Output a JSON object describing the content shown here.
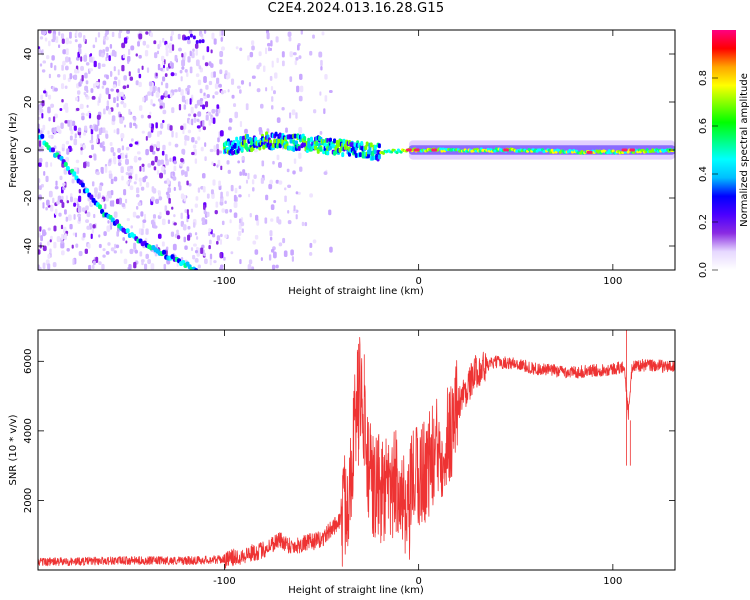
{
  "title": "C2E4.2024.013.16.28.G15",
  "chart_data": [
    {
      "type": "heatmap",
      "xlabel": "Height of straight line (km)",
      "ylabel": "Frequency (Hz)",
      "xlim": [
        -196,
        132
      ],
      "ylim": [
        -50,
        50
      ],
      "xticks": [
        -100,
        0,
        100
      ],
      "yticks": [
        -40,
        -20,
        0,
        20,
        40
      ],
      "colorbar": {
        "label": "Normalized spectral amplitude",
        "range": [
          0,
          1
        ],
        "ticks": [
          0.0,
          0.2,
          0.4,
          0.6,
          0.8
        ],
        "colors": [
          "#ffffff",
          "#e6d8ff",
          "#8a2be2",
          "#4b00ff",
          "#0000ff",
          "#00bfff",
          "#00ffff",
          "#00ff80",
          "#00ff00",
          "#80ff00",
          "#ffff00",
          "#ffa500",
          "#ff0000",
          "#ff0080"
        ]
      },
      "features": {
        "carrier_line": [
          [
            -100,
            1
          ],
          [
            -80,
            4
          ],
          [
            -60,
            3
          ],
          [
            -40,
            1
          ],
          [
            -20,
            -1
          ],
          [
            0,
            0
          ],
          [
            50,
            0
          ],
          [
            90,
            -1
          ],
          [
            132,
            0
          ]
        ],
        "diagonal_trace": [
          [
            -196,
            7
          ],
          [
            -180,
            -8
          ],
          [
            -160,
            -28
          ],
          [
            -140,
            -40
          ],
          [
            -120,
            -48
          ],
          [
            -114,
            -50
          ]
        ]
      }
    },
    {
      "type": "line",
      "xlabel": "Height of straight line (km)",
      "ylabel": "SNR (10 * v/v)",
      "xlim": [
        -196,
        132
      ],
      "ylim": [
        0,
        6900
      ],
      "xticks": [
        -100,
        0,
        100
      ],
      "yticks": [
        2000,
        4000,
        6000
      ],
      "color": "#ee3333",
      "envelope": [
        [
          -196,
          250
        ],
        [
          -180,
          250
        ],
        [
          -160,
          280
        ],
        [
          -140,
          280
        ],
        [
          -120,
          280
        ],
        [
          -100,
          320
        ],
        [
          -90,
          450
        ],
        [
          -80,
          600
        ],
        [
          -72,
          900
        ],
        [
          -65,
          700
        ],
        [
          -58,
          800
        ],
        [
          -50,
          900
        ],
        [
          -45,
          1200
        ],
        [
          -40,
          1500
        ],
        [
          -36,
          2500
        ],
        [
          -32,
          4800
        ],
        [
          -30,
          5500
        ],
        [
          -27,
          3500
        ],
        [
          -24,
          2500
        ],
        [
          -20,
          2500
        ],
        [
          -15,
          2300
        ],
        [
          -10,
          2800
        ],
        [
          -6,
          1200
        ],
        [
          -3,
          2800
        ],
        [
          0,
          2800
        ],
        [
          5,
          3200
        ],
        [
          10,
          3600
        ],
        [
          15,
          4000
        ],
        [
          20,
          4800
        ],
        [
          25,
          5300
        ],
        [
          30,
          5800
        ],
        [
          35,
          5900
        ],
        [
          40,
          6000
        ],
        [
          50,
          5950
        ],
        [
          60,
          5800
        ],
        [
          70,
          5750
        ],
        [
          80,
          5700
        ],
        [
          90,
          5750
        ],
        [
          100,
          5800
        ],
        [
          106,
          5850
        ],
        [
          108,
          4500
        ],
        [
          110,
          5900
        ],
        [
          120,
          5900
        ],
        [
          132,
          5850
        ]
      ]
    }
  ]
}
